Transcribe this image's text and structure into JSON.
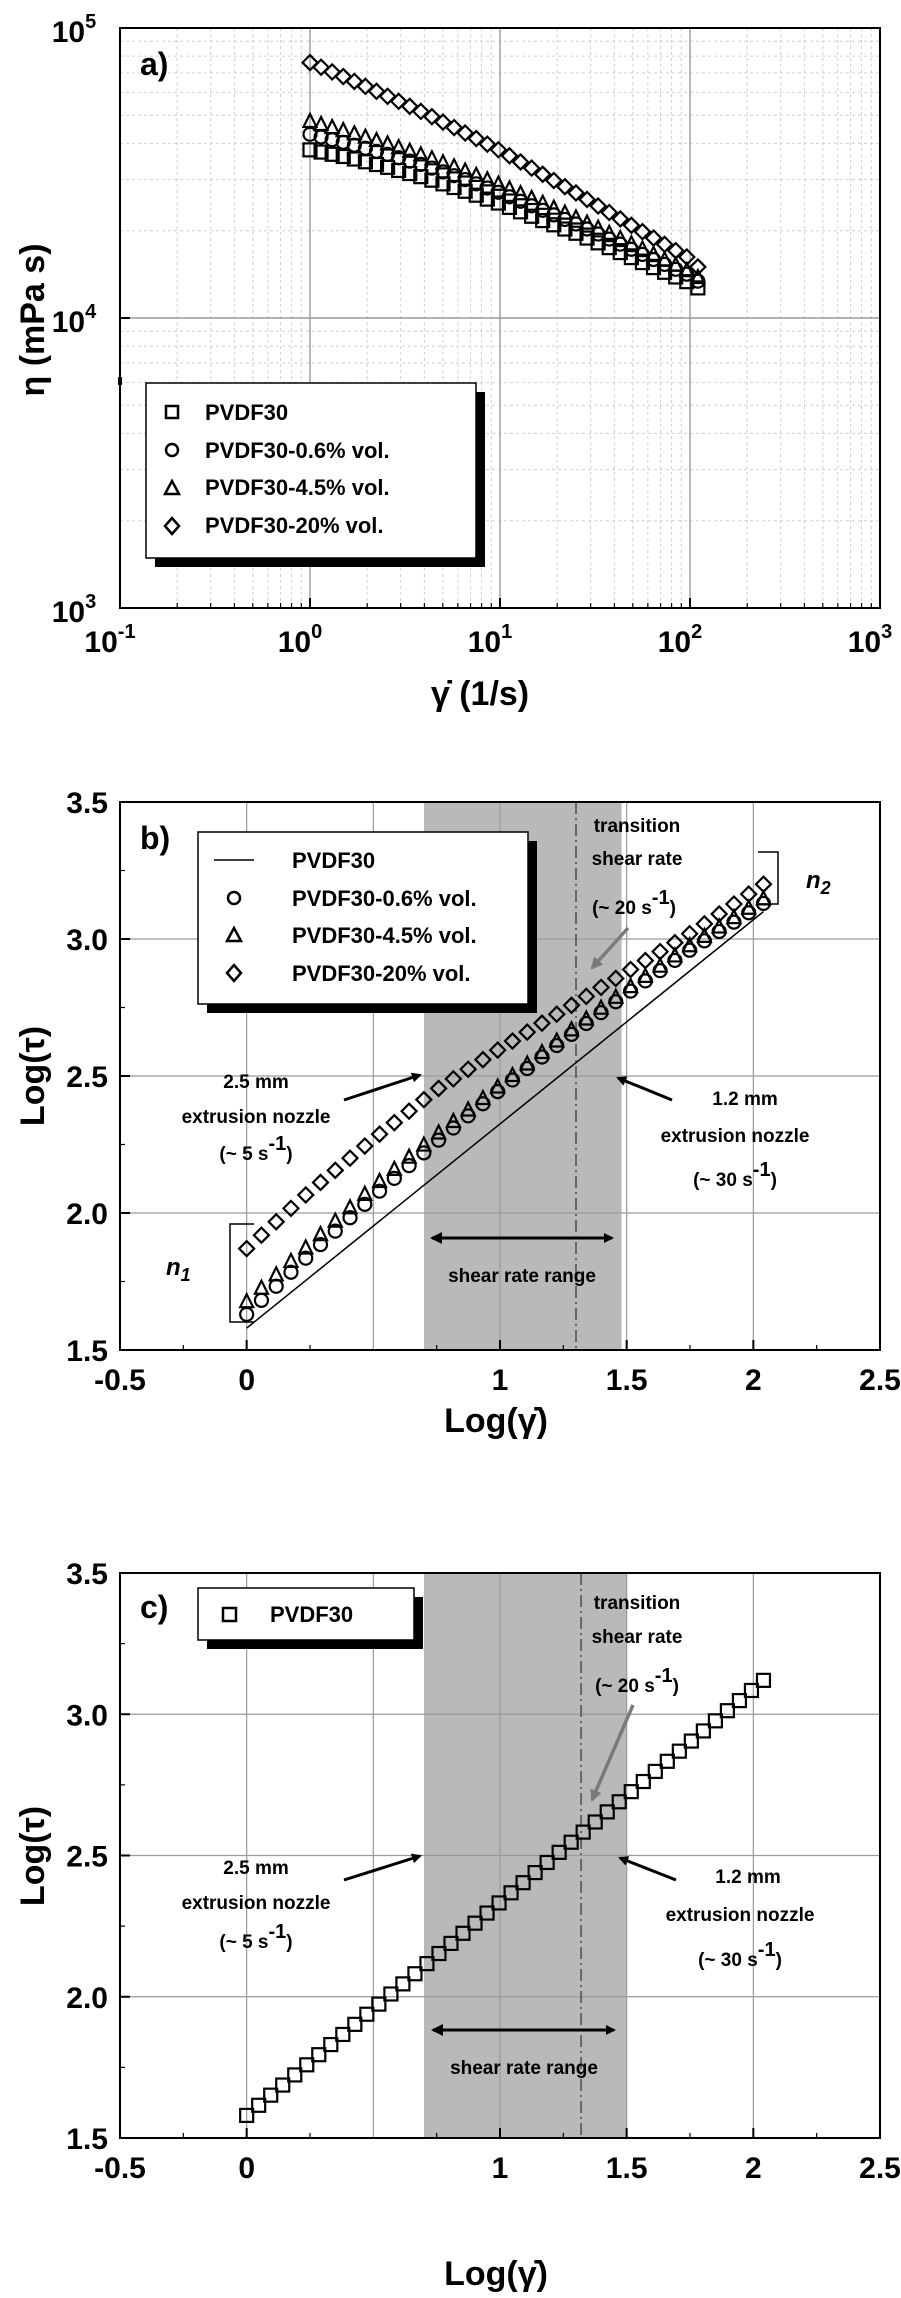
{
  "chart_data": [
    {
      "type": "scatter",
      "panel_label": "a)",
      "xlabel": "γ̇ (1/s)",
      "ylabel": "η (mPa s)",
      "xscale": "log",
      "yscale": "log",
      "xlim": [
        0.1,
        1000
      ],
      "ylim": [
        1000,
        100000
      ],
      "x_ticks": [
        {
          "b": "10",
          "e": "-1"
        },
        {
          "b": "10",
          "e": "0"
        },
        {
          "b": "10",
          "e": "1"
        },
        {
          "b": "10",
          "e": "2"
        },
        {
          "b": "10",
          "e": "3"
        }
      ],
      "y_ticks": [
        {
          "b": "10",
          "e": "3"
        },
        {
          "b": "10",
          "e": "4"
        },
        {
          "b": "10",
          "e": "5"
        }
      ],
      "grid": true,
      "legend_position": "lower-left",
      "series": [
        {
          "name": "PVDF30",
          "marker": "square",
          "x": [
            1,
            1.58,
            2.51,
            3.98,
            6.31,
            10,
            15.8,
            25.1,
            39.8,
            63.1,
            100,
            110
          ],
          "y": [
            38000,
            35800,
            33200,
            30500,
            27600,
            24800,
            22000,
            19600,
            17200,
            15000,
            13200,
            12700
          ]
        },
        {
          "name": "PVDF30-0.6% vol.",
          "marker": "circle",
          "x": [
            1,
            1.58,
            2.51,
            3.98,
            6.31,
            10,
            15.8,
            25.1,
            39.8,
            63.1,
            100,
            110
          ],
          "y": [
            43000,
            40000,
            36800,
            33600,
            30300,
            27000,
            23900,
            21100,
            18400,
            16000,
            14000,
            13400
          ]
        },
        {
          "name": "PVDF30-4.5% vol.",
          "marker": "triangle",
          "x": [
            1,
            1.58,
            2.51,
            3.98,
            6.31,
            10,
            15.8,
            25.1,
            39.8,
            63.1,
            100,
            110
          ],
          "y": [
            48000,
            44200,
            40300,
            36500,
            32700,
            29000,
            25500,
            22300,
            19400,
            16800,
            14500,
            13900
          ]
        },
        {
          "name": "PVDF30-20% vol.",
          "marker": "diamond",
          "x": [
            1,
            1.58,
            2.51,
            3.98,
            6.31,
            10,
            15.8,
            25.1,
            39.8,
            63.1,
            100,
            110
          ],
          "y": [
            76000,
            67000,
            58500,
            51000,
            44000,
            37800,
            32000,
            27000,
            22600,
            19000,
            16000,
            15000
          ]
        }
      ]
    },
    {
      "type": "scatter",
      "panel_label": "b)",
      "xlabel": "Log(γ̇)",
      "ylabel": "Log(τ)",
      "xlim": [
        -0.5,
        2.5
      ],
      "ylim": [
        1.5,
        3.5
      ],
      "x_ticks": [
        "-0.5",
        "0",
        "1",
        "1.5",
        "2",
        "2.5"
      ],
      "x_ticks_values": [
        -0.5,
        0,
        1,
        1.5,
        2,
        2.5
      ],
      "y_ticks": [
        "1.5",
        "2.0",
        "2.5",
        "3.0",
        "3.5"
      ],
      "y_ticks_values": [
        1.5,
        2.0,
        2.5,
        3.0,
        3.5
      ],
      "grid": true,
      "legend_position": "top-left",
      "shaded_range": [
        0.7,
        1.48
      ],
      "vline": 1.3,
      "series": [
        {
          "name": "PVDF30",
          "marker": "line",
          "x": [
            0,
            2.04
          ],
          "y": [
            1.58,
            3.1
          ]
        },
        {
          "name": "PVDF30-0.6% vol.",
          "marker": "circle",
          "x": [
            0,
            0.25,
            0.5,
            0.75,
            1.0,
            1.25,
            1.5,
            1.75,
            2.04
          ],
          "y": [
            1.63,
            1.85,
            2.06,
            2.26,
            2.45,
            2.63,
            2.8,
            2.96,
            3.13
          ]
        },
        {
          "name": "PVDF30-4.5% vol.",
          "marker": "triangle",
          "x": [
            0,
            0.25,
            0.5,
            0.75,
            1.0,
            1.25,
            1.5,
            1.75,
            2.04
          ],
          "y": [
            1.68,
            1.89,
            2.1,
            2.29,
            2.47,
            2.65,
            2.82,
            2.98,
            3.15
          ]
        },
        {
          "name": "PVDF30-20% vol.",
          "marker": "diamond",
          "x": [
            0,
            0.25,
            0.5,
            0.75,
            1.0,
            1.25,
            1.5,
            1.75,
            2.04
          ],
          "y": [
            1.87,
            2.08,
            2.27,
            2.45,
            2.6,
            2.74,
            2.88,
            3.02,
            3.2
          ]
        }
      ]
    },
    {
      "type": "scatter",
      "panel_label": "c)",
      "xlabel": "Log(γ̇)",
      "ylabel": "Log(τ)",
      "xlim": [
        -0.5,
        2.5
      ],
      "ylim": [
        1.5,
        3.5
      ],
      "x_ticks": [
        "-0.5",
        "0",
        "1",
        "1.5",
        "2",
        "2.5"
      ],
      "x_ticks_values": [
        -0.5,
        0,
        1,
        1.5,
        2,
        2.5
      ],
      "y_ticks": [
        "1.5",
        "2.0",
        "2.5",
        "3.0",
        "3.5"
      ],
      "y_ticks_values": [
        1.5,
        2.0,
        2.5,
        3.0,
        3.5
      ],
      "grid": true,
      "legend_position": "top-left",
      "shaded_range": [
        0.7,
        1.5
      ],
      "vline": 1.32,
      "series": [
        {
          "name": "PVDF30",
          "marker": "square",
          "x": [
            0,
            2.04
          ],
          "y": [
            1.58,
            3.12
          ]
        }
      ]
    }
  ],
  "annotations_b": {
    "transition1": "transition",
    "transition2": "shear rate",
    "transition3": "(~ 20 s",
    "transition3_sup": "-1",
    "transition3_end": ")",
    "n2": "n",
    "n2_sub": "2",
    "n1": "n",
    "n1_sub": "1",
    "left1": "2.5 mm",
    "left2": "extrusion nozzle",
    "left3": "(~ 5 s",
    "left3_sup": "-1",
    "left3_end": ")",
    "right1": "1.2 mm",
    "right2": "extrusion nozzle",
    "right3": "(~ 30 s",
    "right3_sup": "-1",
    "right3_end": ")",
    "range": "shear rate range"
  },
  "annotations_c": {
    "transition1": "transition",
    "transition2": "shear rate",
    "transition3": "(~ 20 s",
    "transition3_sup": "-1",
    "transition3_end": ")",
    "left1": "2.5 mm",
    "left2": "extrusion nozzle",
    "left3": "(~ 5 s",
    "left3_sup": "-1",
    "left3_end": ")",
    "right1": "1.2 mm",
    "right2": "extrusion nozzle",
    "right3": "(~ 30 s",
    "right3_sup": "-1",
    "right3_end": ")",
    "range": "shear rate range"
  }
}
